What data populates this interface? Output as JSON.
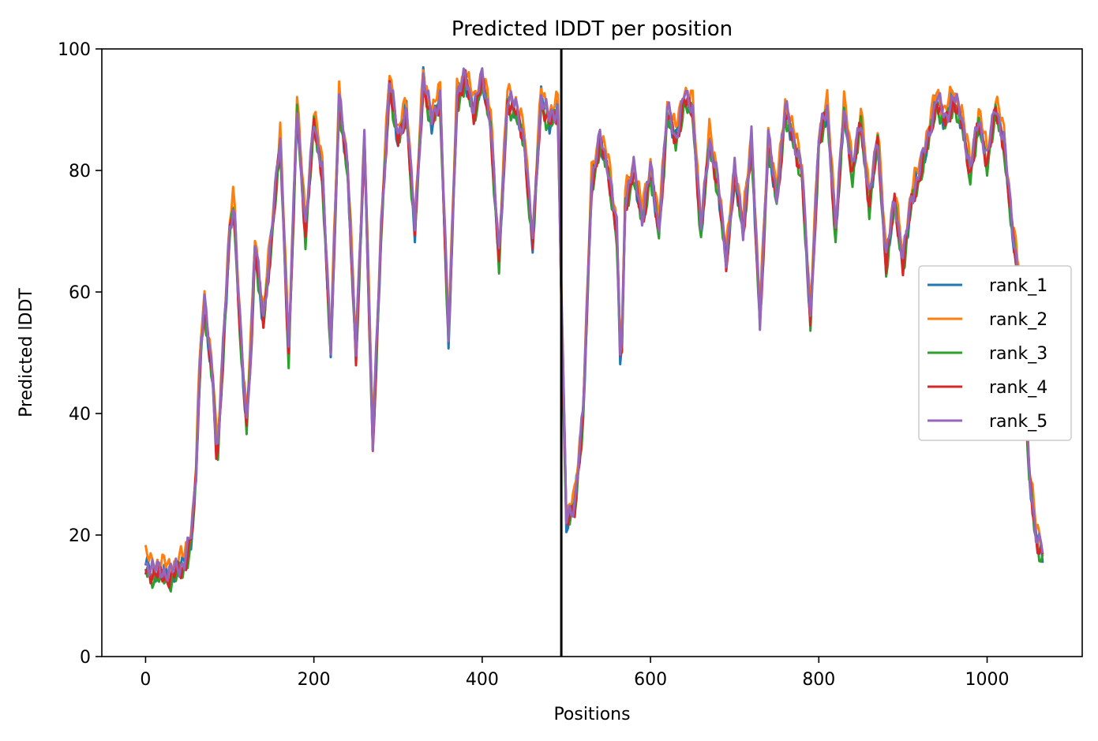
{
  "chart_data": {
    "type": "line",
    "title": "Predicted lDDT per position",
    "xlabel": "Positions",
    "ylabel": "Predicted lDDT",
    "xlim": [
      -52,
      1113
    ],
    "ylim": [
      0,
      100
    ],
    "xticks": [
      "0",
      "200",
      "400",
      "600",
      "800",
      "1000"
    ],
    "yticks": [
      "0",
      "20",
      "40",
      "60",
      "80",
      "100"
    ],
    "grid": false,
    "legend_position": "center-right",
    "vline": 494,
    "x_max": 1066,
    "series": [
      {
        "name": "rank_1",
        "color": "#1f77b4",
        "offset": 0.0
      },
      {
        "name": "rank_2",
        "color": "#ff7f0e",
        "offset": 1.5
      },
      {
        "name": "rank_3",
        "color": "#2ca02c",
        "offset": -1.0
      },
      {
        "name": "rank_4",
        "color": "#d62728",
        "offset": -0.5
      },
      {
        "name": "rank_5",
        "color": "#9467bd",
        "offset": 0.4
      }
    ],
    "profile": [
      [
        0,
        15
      ],
      [
        10,
        14
      ],
      [
        30,
        13.5
      ],
      [
        45,
        15
      ],
      [
        55,
        20
      ],
      [
        60,
        30
      ],
      [
        65,
        50
      ],
      [
        70,
        58
      ],
      [
        80,
        45
      ],
      [
        85,
        32
      ],
      [
        90,
        45
      ],
      [
        100,
        70
      ],
      [
        105,
        75
      ],
      [
        110,
        60
      ],
      [
        115,
        48
      ],
      [
        120,
        38
      ],
      [
        125,
        50
      ],
      [
        130,
        68
      ],
      [
        140,
        55
      ],
      [
        150,
        70
      ],
      [
        160,
        85
      ],
      [
        170,
        50
      ],
      [
        180,
        90
      ],
      [
        190,
        70
      ],
      [
        200,
        88
      ],
      [
        210,
        80
      ],
      [
        220,
        50
      ],
      [
        230,
        92
      ],
      [
        240,
        80
      ],
      [
        250,
        50
      ],
      [
        260,
        85
      ],
      [
        270,
        35
      ],
      [
        280,
        70
      ],
      [
        290,
        95
      ],
      [
        300,
        85
      ],
      [
        310,
        90
      ],
      [
        320,
        70
      ],
      [
        330,
        95
      ],
      [
        340,
        88
      ],
      [
        350,
        92
      ],
      [
        360,
        52
      ],
      [
        370,
        92
      ],
      [
        380,
        95
      ],
      [
        390,
        90
      ],
      [
        400,
        95
      ],
      [
        410,
        88
      ],
      [
        420,
        65
      ],
      [
        430,
        92
      ],
      [
        440,
        90
      ],
      [
        450,
        85
      ],
      [
        460,
        68
      ],
      [
        470,
        92
      ],
      [
        480,
        88
      ],
      [
        490,
        90
      ],
      [
        494,
        60
      ],
      [
        500,
        22
      ],
      [
        510,
        25
      ],
      [
        520,
        40
      ],
      [
        530,
        78
      ],
      [
        540,
        85
      ],
      [
        550,
        80
      ],
      [
        560,
        70
      ],
      [
        565,
        45
      ],
      [
        570,
        75
      ],
      [
        580,
        80
      ],
      [
        590,
        72
      ],
      [
        600,
        80
      ],
      [
        610,
        70
      ],
      [
        620,
        90
      ],
      [
        630,
        85
      ],
      [
        640,
        92
      ],
      [
        650,
        90
      ],
      [
        660,
        70
      ],
      [
        670,
        85
      ],
      [
        680,
        78
      ],
      [
        690,
        65
      ],
      [
        700,
        80
      ],
      [
        710,
        70
      ],
      [
        720,
        85
      ],
      [
        730,
        55
      ],
      [
        740,
        85
      ],
      [
        750,
        75
      ],
      [
        760,
        90
      ],
      [
        770,
        85
      ],
      [
        780,
        80
      ],
      [
        790,
        55
      ],
      [
        800,
        85
      ],
      [
        810,
        90
      ],
      [
        820,
        70
      ],
      [
        830,
        90
      ],
      [
        840,
        80
      ],
      [
        850,
        88
      ],
      [
        860,
        75
      ],
      [
        870,
        85
      ],
      [
        880,
        65
      ],
      [
        890,
        75
      ],
      [
        900,
        65
      ],
      [
        910,
        75
      ],
      [
        920,
        80
      ],
      [
        930,
        85
      ],
      [
        940,
        92
      ],
      [
        950,
        88
      ],
      [
        960,
        92
      ],
      [
        970,
        88
      ],
      [
        980,
        80
      ],
      [
        990,
        88
      ],
      [
        1000,
        82
      ],
      [
        1010,
        90
      ],
      [
        1020,
        85
      ],
      [
        1030,
        70
      ],
      [
        1040,
        60
      ],
      [
        1050,
        30
      ],
      [
        1058,
        20
      ],
      [
        1066,
        17
      ]
    ]
  }
}
